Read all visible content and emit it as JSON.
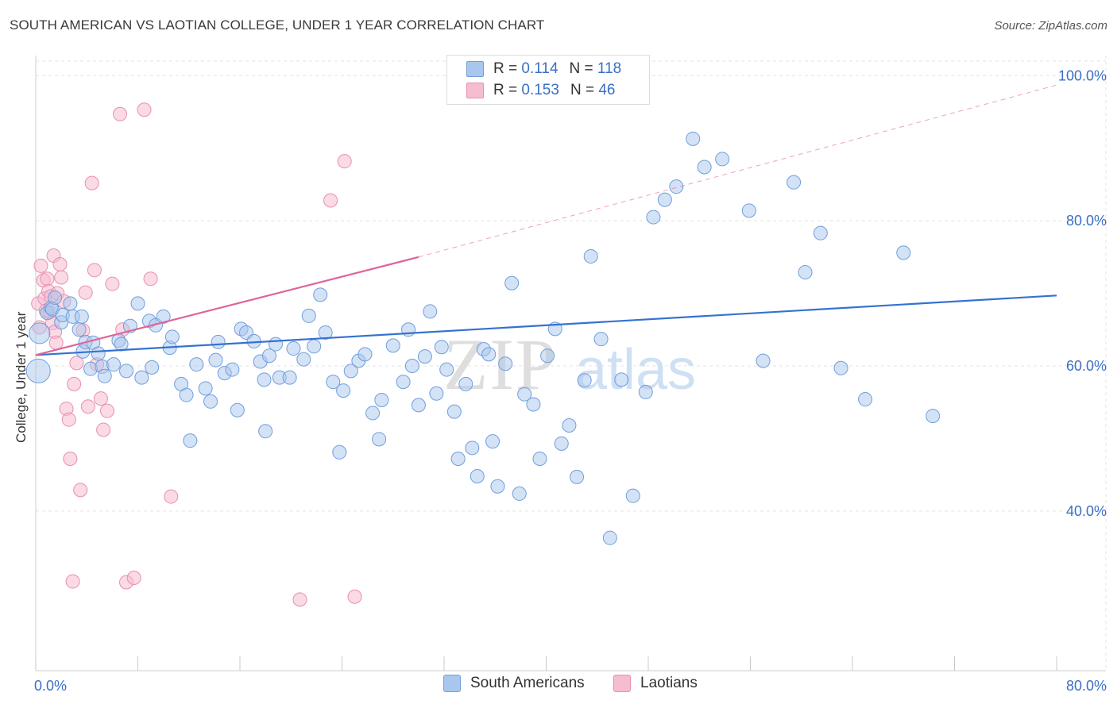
{
  "title": "SOUTH AMERICAN VS LAOTIAN COLLEGE, UNDER 1 YEAR CORRELATION CHART",
  "source": "Source: ZipAtlas.com",
  "watermark": {
    "zip": "ZIP",
    "atlas": "atlas"
  },
  "legend": {
    "series1": {
      "r_label": "R =",
      "r_value": "0.114",
      "n_label": "N =",
      "n_value": "118"
    },
    "series2": {
      "r_label": "R =",
      "r_value": "0.153",
      "n_label": "N =",
      "n_value": "46"
    }
  },
  "colors": {
    "blue_fill": "#a9c6ee",
    "blue_stroke": "#6f9fdc",
    "blue_line": "#3472d0",
    "pink_fill": "#f6bcd0",
    "pink_stroke": "#e98eb0",
    "pink_line": "#e0649a",
    "grid": "#e3e3e3",
    "axis_text": "#3a6fc5"
  },
  "chart_data": {
    "type": "scatter",
    "title": "SOUTH AMERICAN VS LAOTIAN COLLEGE, UNDER 1 YEAR CORRELATION CHART",
    "xlabel": "",
    "ylabel": "College, Under 1 year",
    "xlim": [
      0,
      80
    ],
    "ylim": [
      18,
      102
    ],
    "x_tick_labels": [
      "0.0%",
      "80.0%"
    ],
    "y_ticks": [
      {
        "value": 100,
        "label": "100.0%"
      },
      {
        "value": 80,
        "label": "80.0%"
      },
      {
        "value": 60,
        "label": "60.0%"
      },
      {
        "value": 40,
        "label": "40.0%"
      }
    ],
    "series": [
      {
        "name": "South Americans",
        "color": "#6f9fdc",
        "r": 0.114,
        "n": 118,
        "trend": {
          "x": [
            0,
            80
          ],
          "y": [
            61.5,
            69.7
          ]
        },
        "points": [
          [
            0.2,
            59.3
          ],
          [
            0.3,
            64.5
          ],
          [
            0.9,
            67.3
          ],
          [
            1.2,
            68.0
          ],
          [
            1.3,
            67.8
          ],
          [
            1.5,
            69.4
          ],
          [
            2.0,
            66.0
          ],
          [
            2.1,
            67.0
          ],
          [
            2.7,
            68.6
          ],
          [
            2.9,
            66.8
          ],
          [
            3.4,
            65.0
          ],
          [
            3.6,
            66.8
          ],
          [
            3.7,
            62.0
          ],
          [
            3.9,
            63.3
          ],
          [
            4.3,
            59.6
          ],
          [
            4.5,
            63.2
          ],
          [
            4.9,
            61.7
          ],
          [
            5.2,
            59.9
          ],
          [
            5.4,
            58.6
          ],
          [
            6.1,
            60.2
          ],
          [
            6.5,
            63.5
          ],
          [
            6.7,
            63.0
          ],
          [
            7.1,
            59.3
          ],
          [
            7.4,
            65.5
          ],
          [
            8.0,
            68.6
          ],
          [
            8.3,
            58.4
          ],
          [
            8.9,
            66.2
          ],
          [
            9.1,
            59.8
          ],
          [
            9.4,
            65.6
          ],
          [
            10.0,
            66.8
          ],
          [
            10.5,
            62.5
          ],
          [
            10.7,
            64.0
          ],
          [
            11.4,
            57.5
          ],
          [
            11.8,
            56.0
          ],
          [
            12.1,
            49.7
          ],
          [
            12.6,
            60.2
          ],
          [
            13.3,
            56.9
          ],
          [
            13.7,
            55.1
          ],
          [
            14.1,
            60.8
          ],
          [
            14.3,
            63.3
          ],
          [
            14.8,
            59.0
          ],
          [
            15.4,
            59.5
          ],
          [
            15.8,
            53.9
          ],
          [
            16.1,
            65.1
          ],
          [
            16.5,
            64.6
          ],
          [
            17.1,
            63.4
          ],
          [
            17.6,
            60.6
          ],
          [
            17.9,
            58.1
          ],
          [
            18.0,
            51.0
          ],
          [
            18.3,
            61.4
          ],
          [
            18.8,
            63.0
          ],
          [
            19.1,
            58.4
          ],
          [
            19.9,
            58.4
          ],
          [
            20.2,
            62.4
          ],
          [
            21.0,
            60.9
          ],
          [
            21.4,
            66.9
          ],
          [
            21.8,
            62.7
          ],
          [
            22.3,
            69.8
          ],
          [
            22.7,
            64.6
          ],
          [
            23.3,
            57.8
          ],
          [
            23.8,
            48.1
          ],
          [
            24.1,
            56.6
          ],
          [
            24.7,
            59.3
          ],
          [
            25.3,
            60.7
          ],
          [
            25.8,
            61.6
          ],
          [
            26.4,
            53.5
          ],
          [
            26.9,
            49.9
          ],
          [
            27.1,
            55.3
          ],
          [
            28.0,
            62.8
          ],
          [
            28.8,
            57.8
          ],
          [
            29.2,
            65.0
          ],
          [
            29.5,
            60.0
          ],
          [
            30.0,
            54.6
          ],
          [
            30.5,
            61.3
          ],
          [
            30.9,
            67.5
          ],
          [
            31.4,
            56.2
          ],
          [
            31.8,
            62.6
          ],
          [
            32.2,
            59.5
          ],
          [
            32.8,
            53.7
          ],
          [
            33.1,
            47.2
          ],
          [
            33.7,
            57.5
          ],
          [
            34.2,
            48.7
          ],
          [
            34.6,
            44.8
          ],
          [
            35.1,
            62.3
          ],
          [
            35.5,
            61.6
          ],
          [
            35.8,
            49.6
          ],
          [
            36.2,
            43.4
          ],
          [
            36.8,
            60.3
          ],
          [
            37.3,
            71.4
          ],
          [
            37.9,
            42.4
          ],
          [
            38.3,
            56.1
          ],
          [
            39.0,
            54.7
          ],
          [
            39.5,
            47.2
          ],
          [
            40.1,
            61.4
          ],
          [
            40.7,
            65.1
          ],
          [
            41.2,
            49.3
          ],
          [
            41.8,
            51.8
          ],
          [
            42.4,
            44.7
          ],
          [
            43.0,
            58.0
          ],
          [
            43.5,
            75.1
          ],
          [
            44.3,
            63.7
          ],
          [
            45.0,
            36.3
          ],
          [
            45.9,
            58.1
          ],
          [
            46.8,
            42.1
          ],
          [
            47.8,
            56.4
          ],
          [
            48.4,
            80.5
          ],
          [
            49.3,
            82.9
          ],
          [
            50.2,
            84.7
          ],
          [
            51.5,
            91.3
          ],
          [
            52.4,
            87.4
          ],
          [
            53.8,
            88.5
          ],
          [
            55.9,
            81.4
          ],
          [
            57.0,
            60.7
          ],
          [
            59.4,
            85.3
          ],
          [
            60.3,
            72.9
          ],
          [
            61.5,
            78.3
          ],
          [
            63.1,
            59.7
          ],
          [
            65.0,
            55.4
          ],
          [
            68.0,
            75.6
          ],
          [
            70.3,
            53.1
          ]
        ]
      },
      {
        "name": "Laotians",
        "color": "#e98eb0",
        "r": 0.153,
        "n": 46,
        "trend": {
          "x": [
            0,
            30
          ],
          "y": [
            61.5,
            75.0
          ],
          "dashed_to": {
            "x": 80,
            "y": 98.7
          }
        },
        "points": [
          [
            0.2,
            68.6
          ],
          [
            0.3,
            65.3
          ],
          [
            0.4,
            73.8
          ],
          [
            0.6,
            71.8
          ],
          [
            0.7,
            69.3
          ],
          [
            0.8,
            67.6
          ],
          [
            0.9,
            72.0
          ],
          [
            1.0,
            70.3
          ],
          [
            1.1,
            67.4
          ],
          [
            1.2,
            69.6
          ],
          [
            1.3,
            65.9
          ],
          [
            1.4,
            75.2
          ],
          [
            1.5,
            64.7
          ],
          [
            1.6,
            63.2
          ],
          [
            1.7,
            70.0
          ],
          [
            1.9,
            74.0
          ],
          [
            2.0,
            72.2
          ],
          [
            2.2,
            68.9
          ],
          [
            2.4,
            54.1
          ],
          [
            2.6,
            52.6
          ],
          [
            2.7,
            47.2
          ],
          [
            2.9,
            30.3
          ],
          [
            3.0,
            57.5
          ],
          [
            3.2,
            60.4
          ],
          [
            3.5,
            42.9
          ],
          [
            3.7,
            64.9
          ],
          [
            3.9,
            70.1
          ],
          [
            4.1,
            54.4
          ],
          [
            4.4,
            85.2
          ],
          [
            4.6,
            73.2
          ],
          [
            4.8,
            60.2
          ],
          [
            5.1,
            55.5
          ],
          [
            5.3,
            51.2
          ],
          [
            5.6,
            53.8
          ],
          [
            6.0,
            71.3
          ],
          [
            6.6,
            94.7
          ],
          [
            6.8,
            65.0
          ],
          [
            7.1,
            30.2
          ],
          [
            7.7,
            30.8
          ],
          [
            8.5,
            95.3
          ],
          [
            9.0,
            72.0
          ],
          [
            10.6,
            42.0
          ],
          [
            20.7,
            27.8
          ],
          [
            23.1,
            82.8
          ],
          [
            24.2,
            88.2
          ],
          [
            25.0,
            28.2
          ]
        ]
      }
    ]
  },
  "bottom_legend": {
    "series1": "South Americans",
    "series2": "Laotians"
  }
}
